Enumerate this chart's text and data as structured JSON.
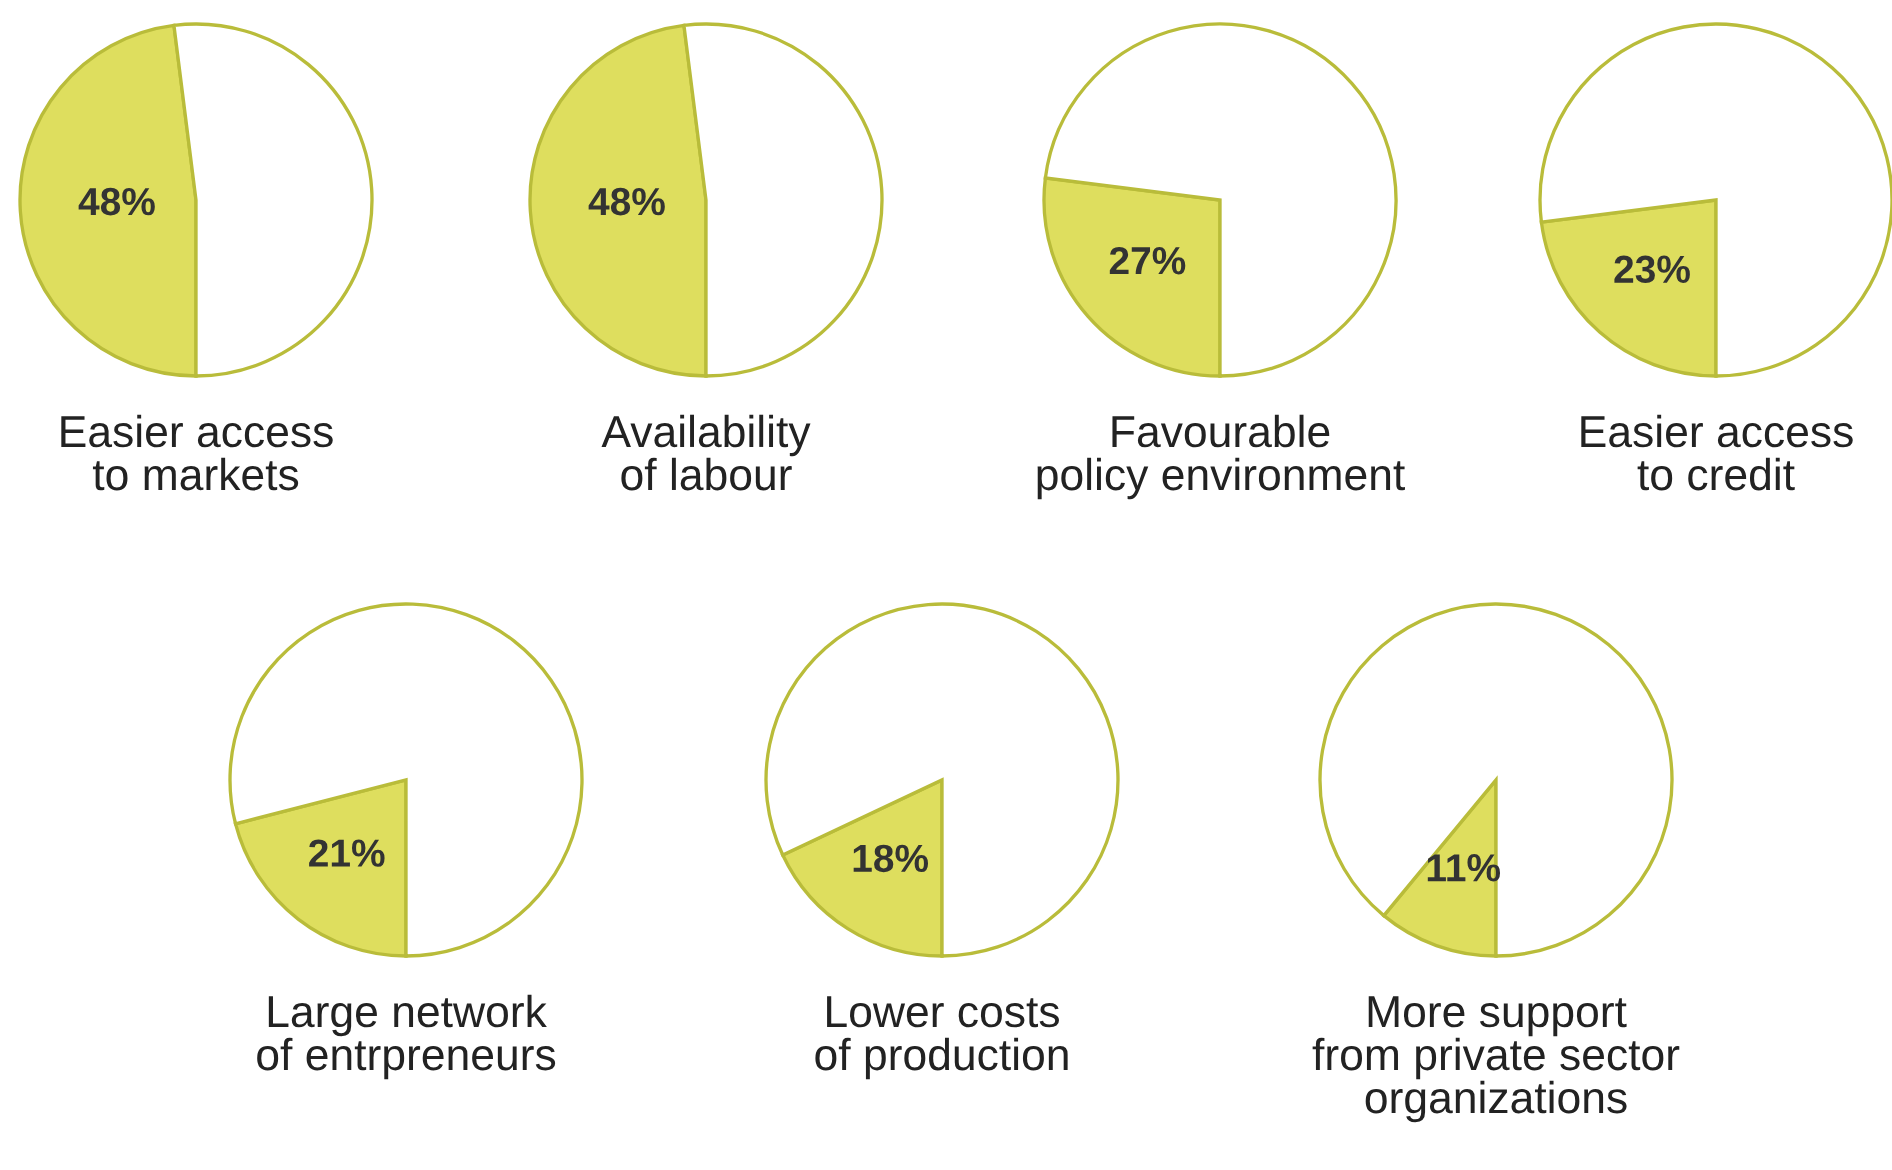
{
  "chart_data": [
    {
      "type": "pie",
      "title": "Easier access\nto markets",
      "categories": [
        null,
        null
      ],
      "values": [
        48,
        52
      ],
      "colors": [
        "#dede5e",
        "#ffffff"
      ],
      "value_labels": [
        "48%",
        null
      ]
    },
    {
      "type": "pie",
      "title": "Availability\nof labour",
      "categories": [
        null,
        null
      ],
      "values": [
        48,
        52
      ],
      "colors": [
        "#dede5e",
        "#ffffff"
      ],
      "value_labels": [
        "48%",
        null
      ]
    },
    {
      "type": "pie",
      "title": "Favourable\npolicy environment",
      "categories": [
        null,
        null
      ],
      "values": [
        27,
        73
      ],
      "colors": [
        "#dede5e",
        "#ffffff"
      ],
      "value_labels": [
        "27%",
        null
      ]
    },
    {
      "type": "pie",
      "title": "Easier access\nto credit",
      "categories": [
        null,
        null
      ],
      "values": [
        23,
        77
      ],
      "colors": [
        "#dede5e",
        "#ffffff"
      ],
      "value_labels": [
        "23%",
        null
      ]
    },
    {
      "type": "pie",
      "title": "Large network\nof entrpreneurs",
      "categories": [
        null,
        null
      ],
      "values": [
        21,
        79
      ],
      "colors": [
        "#dede5e",
        "#ffffff"
      ],
      "value_labels": [
        "21%",
        null
      ]
    },
    {
      "type": "pie",
      "title": "Lower costs\nof production",
      "categories": [
        null,
        null
      ],
      "values": [
        18,
        82
      ],
      "colors": [
        "#dede5e",
        "#ffffff"
      ],
      "value_labels": [
        "18%",
        null
      ]
    },
    {
      "type": "pie",
      "title": "More support\nfrom private sector\norganizations",
      "categories": [
        null,
        null
      ],
      "values": [
        11,
        89
      ],
      "colors": [
        "#dede5e",
        "#ffffff"
      ],
      "value_labels": [
        "11%",
        null
      ]
    }
  ]
}
